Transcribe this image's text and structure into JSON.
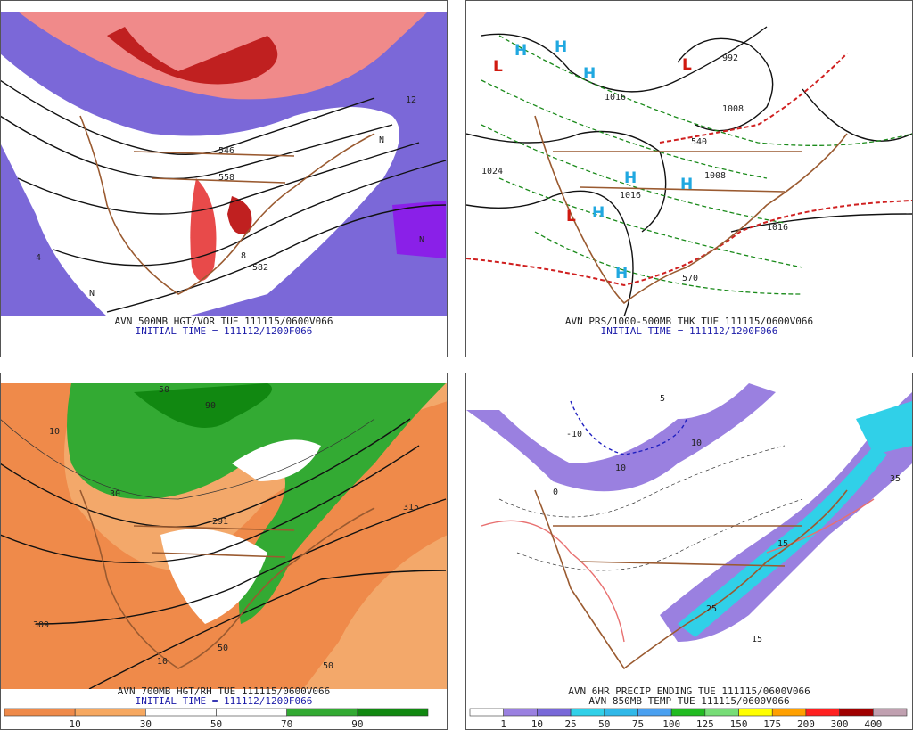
{
  "panels": [
    {
      "caption": [
        "AVN 500MB HGT/VOR TUE 111115/0600V066",
        "INITIAL TIME = 111112/1200F066"
      ],
      "labels": [
        "546",
        "558",
        "582",
        "N",
        "N",
        "N",
        "4",
        "8",
        "12"
      ]
    },
    {
      "caption": [
        "AVN PRS/1000-500MB THK TUE 111115/0600V066",
        "INITIAL TIME = 111112/1200F066"
      ],
      "labels": [
        "1024",
        "1016",
        "1008",
        "1016",
        "1008",
        "992",
        "540",
        "570",
        "1016"
      ],
      "highs": [
        "H",
        "H",
        "H",
        "H",
        "H",
        "H",
        "H"
      ],
      "lows": [
        "L",
        "L",
        "L"
      ]
    },
    {
      "caption": [
        "AVN 700MB HGT/RH TUE 111115/0600V066",
        "INITIAL TIME = 111112/1200F066"
      ],
      "labels": [
        "50",
        "90",
        "10",
        "30",
        "291",
        "315",
        "309",
        "50",
        "10",
        "50"
      ],
      "colorbar": {
        "ticks": [
          10,
          30,
          50,
          70,
          90
        ]
      }
    },
    {
      "caption": [
        "AVN 6HR PRECIP ENDING TUE 111115/0600V066",
        "AVN 850MB TEMP TUE 111115/0600V066"
      ],
      "labels": [
        "5",
        "10",
        "-10",
        "0",
        "10",
        "15",
        "25",
        "35",
        "15"
      ],
      "colorbar": {
        "ticks": [
          1,
          10,
          25,
          50,
          75,
          100,
          125,
          150,
          175,
          200,
          300,
          400
        ]
      }
    }
  ]
}
